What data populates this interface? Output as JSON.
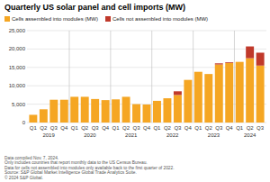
{
  "chart_data": {
    "type": "bar",
    "stacked": true,
    "title": "Quarterly US solar panel and cell imports (MW)",
    "categories": [
      "Q1",
      "Q2",
      "Q3",
      "Q4",
      "Q1",
      "Q2",
      "Q3",
      "Q4",
      "Q1",
      "Q2",
      "Q3",
      "Q4",
      "Q1",
      "Q2",
      "Q3",
      "Q4",
      "Q1",
      "Q2",
      "Q3",
      "Q4",
      "Q1",
      "Q2",
      "Q3"
    ],
    "category_groups": [
      "2019",
      "2019",
      "2019",
      "2019",
      "2020",
      "2020",
      "2020",
      "2020",
      "2021",
      "2021",
      "2021",
      "2021",
      "2022",
      "2022",
      "2022",
      "2022",
      "2023",
      "2023",
      "2023",
      "2023",
      "2024",
      "2024",
      "2024"
    ],
    "series": [
      {
        "name": "Cells assembled into modules (MW)",
        "color": "#F5A623",
        "values": [
          2100,
          3600,
          6200,
          6200,
          7000,
          7000,
          6400,
          6100,
          6300,
          7000,
          5000,
          4900,
          5900,
          6600,
          7500,
          11600,
          13800,
          13200,
          15800,
          16200,
          16500,
          17500,
          15500
        ]
      },
      {
        "name": "Cells not assembled into modules (MW)",
        "color": "#C0392B",
        "values": [
          0,
          0,
          0,
          0,
          0,
          0,
          0,
          0,
          0,
          0,
          0,
          0,
          0,
          0,
          1000,
          0,
          0,
          0,
          300,
          200,
          0,
          3200,
          3500
        ]
      }
    ],
    "ylim": [
      0,
      25000
    ],
    "yticks": [
      0,
      {
        "value": 5000,
        "label": "5,000"
      },
      {
        "value": 10000,
        "label": "10,000"
      },
      {
        "value": 15000,
        "label": "15,000"
      },
      {
        "value": 20000,
        "label": "20,000"
      },
      {
        "value": 25000,
        "label": "25,000"
      }
    ],
    "grid": true,
    "legend": "upper left",
    "annotations": [
      "Data compiled Nov. 7, 2024.",
      "Only includes countries that report monthly data to the US Census Bureau.",
      "Data for cells not assembled into modules only available back to the first quarter of 2022.",
      "Source: S&P Global Market Intelligence Global Trade Analytics Suite.",
      "© 2024 S&P Global."
    ]
  }
}
